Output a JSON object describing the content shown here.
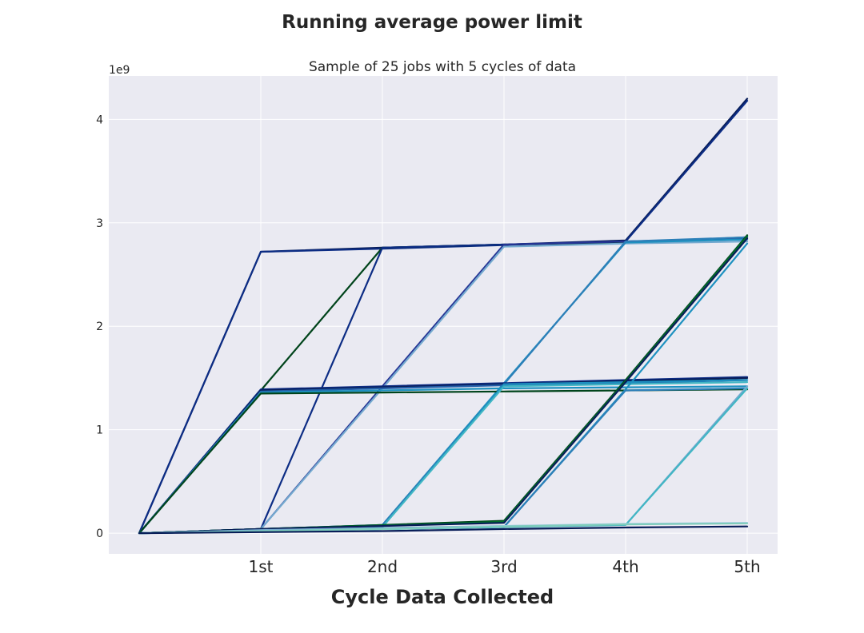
{
  "chart_data": {
    "type": "line",
    "title": "Running average power limit",
    "subtitle": "Sample of 25 jobs with 5 cycles of data",
    "xlabel": "Cycle Data Collected",
    "ylabel": "",
    "y_offset_label": "1e9",
    "x": [
      0,
      1,
      2,
      3,
      4,
      5
    ],
    "x_tick_values": [
      1,
      2,
      3,
      4,
      5
    ],
    "x_tick_labels": [
      "1st",
      "2nd",
      "3rd",
      "4th",
      "5th"
    ],
    "xlim": [
      -0.25,
      5.25
    ],
    "y_tick_values": [
      0,
      1000000000,
      2000000000,
      3000000000,
      4000000000
    ],
    "y_tick_labels": [
      "0",
      "1",
      "2",
      "3",
      "4"
    ],
    "ylim": [
      -200000000,
      4420000000
    ],
    "grid": true,
    "background": "#eaeaf2",
    "series": [
      {
        "color": "#081d58",
        "values": [
          0,
          2720000000,
          2760000000,
          2790000000,
          2830000000,
          4200000000
        ]
      },
      {
        "color": "#0c2c84",
        "values": [
          0,
          2720000000,
          2750000000,
          2785000000,
          2820000000,
          4180000000
        ]
      },
      {
        "color": "#00441b",
        "values": [
          0,
          1380000000,
          2760000000,
          2790000000,
          2810000000,
          2860000000
        ]
      },
      {
        "color": "#0c2c84",
        "values": [
          0,
          40000000,
          2760000000,
          2790000000,
          2820000000,
          2850000000
        ]
      },
      {
        "color": "#253494",
        "values": [
          0,
          40000000,
          1420000000,
          2790000000,
          2820000000,
          2840000000
        ]
      },
      {
        "color": "#74a9cf",
        "values": [
          0,
          40000000,
          1400000000,
          2770000000,
          2800000000,
          2820000000
        ]
      },
      {
        "color": "#1d91c0",
        "values": [
          0,
          40000000,
          80000000,
          1450000000,
          2810000000,
          2840000000
        ]
      },
      {
        "color": "#2c7fb8",
        "values": [
          0,
          40000000,
          80000000,
          1440000000,
          2820000000,
          2860000000
        ]
      },
      {
        "color": "#0c2c84",
        "values": [
          0,
          1390000000,
          1420000000,
          1450000000,
          1480000000,
          1510000000
        ]
      },
      {
        "color": "#081d58",
        "values": [
          0,
          1380000000,
          1410000000,
          1440000000,
          1470000000,
          1500000000
        ]
      },
      {
        "color": "#225ea8",
        "values": [
          0,
          1370000000,
          1400000000,
          1430000000,
          1450000000,
          1480000000
        ]
      },
      {
        "color": "#1d91c0",
        "values": [
          0,
          1360000000,
          1380000000,
          1400000000,
          1410000000,
          1420000000
        ]
      },
      {
        "color": "#00441b",
        "values": [
          0,
          1350000000,
          1360000000,
          1370000000,
          1380000000,
          1390000000
        ]
      },
      {
        "color": "#1d91c0",
        "values": [
          0,
          30000000,
          60000000,
          1440000000,
          1460000000,
          1480000000
        ]
      },
      {
        "color": "#41b6c4",
        "values": [
          0,
          20000000,
          60000000,
          1420000000,
          1440000000,
          1460000000
        ]
      },
      {
        "color": "#00441b",
        "values": [
          0,
          40000000,
          80000000,
          120000000,
          1480000000,
          2880000000
        ]
      },
      {
        "color": "#006d2c",
        "values": [
          0,
          40000000,
          75000000,
          110000000,
          1470000000,
          2870000000
        ]
      },
      {
        "color": "#081d58",
        "values": [
          0,
          40000000,
          70000000,
          100000000,
          1460000000,
          2850000000
        ]
      },
      {
        "color": "#1d91c0",
        "values": [
          0,
          20000000,
          40000000,
          60000000,
          1390000000,
          2800000000
        ]
      },
      {
        "color": "#2c7fb8",
        "values": [
          0,
          20000000,
          40000000,
          60000000,
          1380000000,
          1400000000
        ]
      },
      {
        "color": "#74a9cf",
        "values": [
          0,
          30000000,
          50000000,
          70000000,
          80000000,
          1420000000
        ]
      },
      {
        "color": "#41b6c4",
        "values": [
          0,
          20000000,
          40000000,
          60000000,
          80000000,
          1400000000
        ]
      },
      {
        "color": "#9ecae1",
        "values": [
          0,
          20000000,
          40000000,
          70000000,
          90000000,
          100000000
        ]
      },
      {
        "color": "#7fcdbb",
        "values": [
          0,
          20000000,
          40000000,
          65000000,
          85000000,
          95000000
        ]
      },
      {
        "color": "#081d58",
        "values": [
          0,
          10000000,
          20000000,
          40000000,
          55000000,
          65000000
        ]
      }
    ]
  }
}
